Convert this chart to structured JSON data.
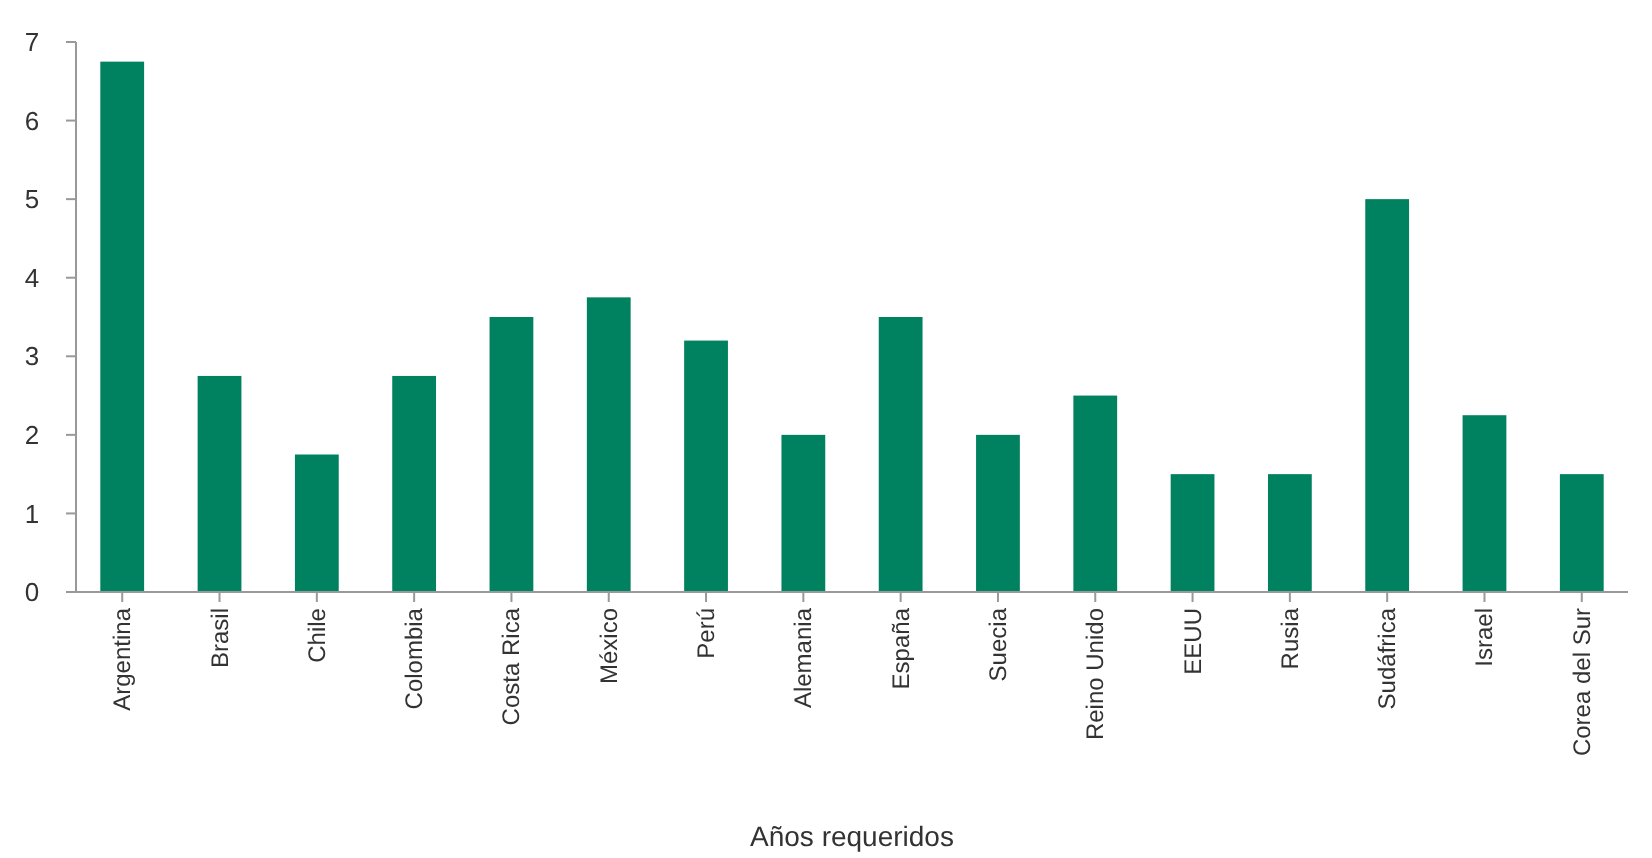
{
  "chart_data": {
    "type": "bar",
    "xlabel": "Años requeridos",
    "categories": [
      "Argentina",
      "Brasil",
      "Chile",
      "Colombia",
      "Costa Rica",
      "México",
      "Perú",
      "Alemania",
      "España",
      "Suecia",
      "Reino Unido",
      "EEUU",
      "Rusia",
      "Sudáfrica",
      "Israel",
      "Corea del Sur"
    ],
    "values": [
      6.75,
      2.75,
      1.75,
      2.75,
      3.5,
      3.75,
      3.2,
      2,
      3.5,
      2,
      2.5,
      1.5,
      1.5,
      5,
      2.25,
      1.5
    ],
    "color": "#00815f",
    "ylim": [
      0,
      7
    ],
    "yticks": [
      0,
      1,
      2,
      3,
      4,
      5,
      6,
      7
    ]
  }
}
